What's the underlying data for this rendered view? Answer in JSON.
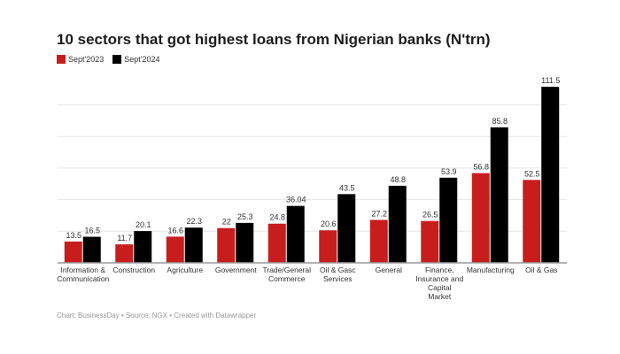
{
  "chart_data": {
    "type": "bar",
    "title": "10 sectors that got highest loans from Nigerian banks (N'trn)",
    "categories": [
      [
        "Information &",
        "Communication"
      ],
      [
        "Construction"
      ],
      [
        "Agriculture"
      ],
      [
        "Government"
      ],
      [
        "Trade/General",
        "Commerce"
      ],
      [
        "Oil & Gasc",
        "Services"
      ],
      [
        "General"
      ],
      [
        "Finance,",
        "Insurance and",
        "Capital",
        "Market"
      ],
      [
        "Manufacturing"
      ],
      [
        "Oil & Gas"
      ]
    ],
    "series": [
      {
        "name": "Sept'2023",
        "color": "#c71e1d",
        "values": [
          13.5,
          11.7,
          16.6,
          22,
          24.8,
          20.6,
          27.2,
          26.5,
          56.8,
          52.5
        ],
        "labels": [
          "13.5",
          "11.7",
          "16.6",
          "22",
          "24.8",
          "20.6",
          "27.2",
          "26.5",
          "56.8",
          "52.5"
        ]
      },
      {
        "name": "Sept'2024",
        "color": "#000000",
        "values": [
          16.5,
          20.1,
          22.3,
          25.3,
          36.04,
          43.5,
          48.8,
          53.9,
          85.8,
          111.5
        ],
        "labels": [
          "16.5",
          "20.1",
          "22.3",
          "25.3",
          "36.04",
          "43.5",
          "48.8",
          "53.9",
          "85.8",
          "111.5"
        ]
      }
    ],
    "xlabel": "",
    "ylabel": "",
    "ylim": [
      0,
      111.5
    ],
    "grid": true,
    "gridlines": [
      20,
      40,
      60,
      80,
      100
    ],
    "legend": "top-left"
  },
  "footer": "Chart: BusinessDay • Source: NGX • Created with Datawrapper"
}
